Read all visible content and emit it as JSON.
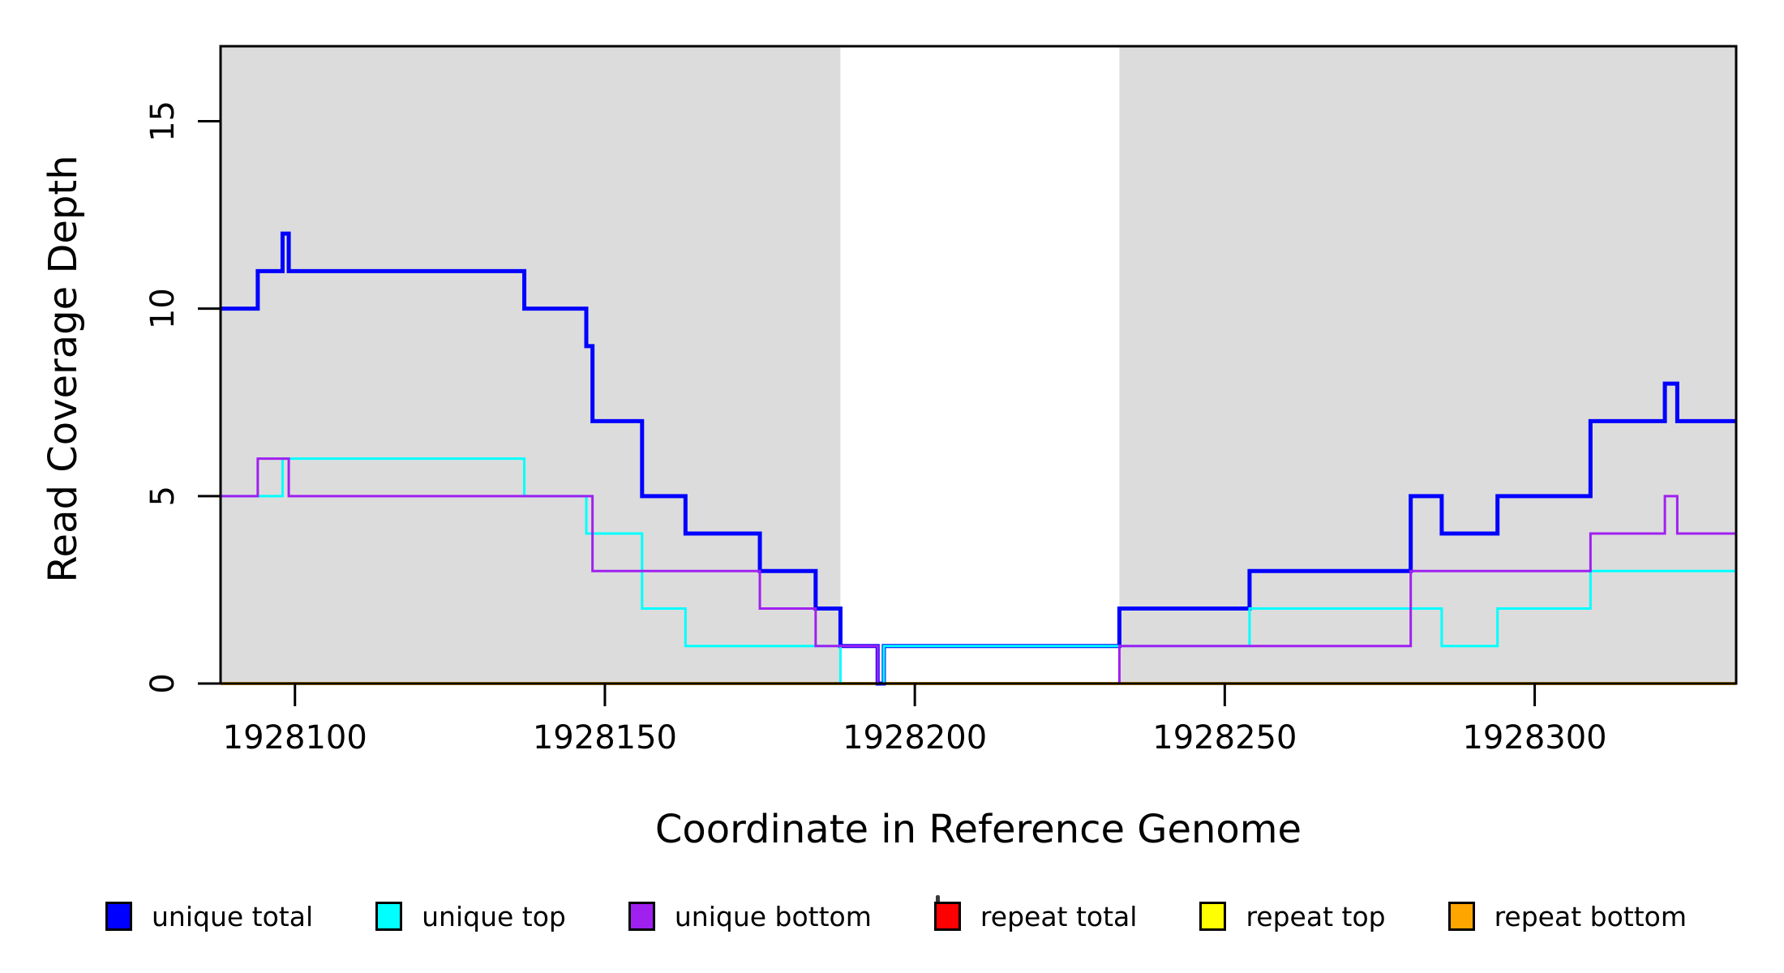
{
  "chart_data": {
    "type": "line",
    "subtype": "step-post",
    "title": "",
    "xlabel": "Coordinate in Reference Genome",
    "ylabel": "Read Coverage Depth",
    "xlim": [
      1928088,
      1928332.5
    ],
    "ylim": [
      0,
      17
    ],
    "x_ticks": [
      "1928100",
      "1928150",
      "1928200",
      "1928250",
      "1928300"
    ],
    "x_tick_values": [
      1928100,
      1928150,
      1928200,
      1928250,
      1928300
    ],
    "y_ticks": [
      "0",
      "5",
      "10",
      "15"
    ],
    "y_tick_values": [
      0,
      5,
      10,
      15
    ],
    "grid": false,
    "legend_position": "bottom",
    "colors": {
      "plot_background_covered": "#DCDCDC",
      "plot_background_gap": "#FFFFFF",
      "axis": "#000000",
      "unique_total": "#0000FF",
      "unique_top": "#00FFFF",
      "unique_bottom": "#A020F0",
      "repeat_total": "#FF0000",
      "repeat_top": "#FFFF00",
      "repeat_bottom": "#FFA500"
    },
    "background_regions": [
      {
        "name": "covered-left",
        "x0": 1928088,
        "x1": 1928188,
        "color": "#DCDCDC"
      },
      {
        "name": "uncovered-gap",
        "x0": 1928188,
        "x1": 1928233,
        "color": "#FFFFFF"
      },
      {
        "name": "covered-right",
        "x0": 1928233,
        "x1": 1928332.5,
        "color": "#DCDCDC"
      }
    ],
    "series": [
      {
        "name": "repeat total",
        "color": "#FF0000",
        "width": 3.5,
        "steps": [
          [
            1928088,
            0
          ]
        ]
      },
      {
        "name": "repeat top",
        "color": "#FFFF00",
        "width": 3.5,
        "steps": [
          [
            1928088,
            0
          ]
        ]
      },
      {
        "name": "repeat bottom",
        "color": "#FFA500",
        "width": 3.5,
        "steps": [
          [
            1928088,
            0
          ]
        ]
      },
      {
        "name": "unique total",
        "color": "#0000FF",
        "width": 5,
        "steps": [
          [
            1928088,
            10
          ],
          [
            1928094,
            11
          ],
          [
            1928098,
            12
          ],
          [
            1928099,
            11
          ],
          [
            1928137,
            10
          ],
          [
            1928147,
            9
          ],
          [
            1928148,
            7
          ],
          [
            1928156,
            5
          ],
          [
            1928163,
            4
          ],
          [
            1928175,
            3
          ],
          [
            1928184,
            2
          ],
          [
            1928188,
            1
          ],
          [
            1928194,
            0
          ],
          [
            1928195,
            1
          ],
          [
            1928233,
            2
          ],
          [
            1928254,
            3
          ],
          [
            1928280,
            5
          ],
          [
            1928285,
            4
          ],
          [
            1928294,
            5
          ],
          [
            1928309,
            7
          ],
          [
            1928321,
            8
          ],
          [
            1928323,
            7
          ]
        ]
      },
      {
        "name": "unique top",
        "color": "#00FFFF",
        "width": 3,
        "steps": [
          [
            1928088,
            5
          ],
          [
            1928098,
            6
          ],
          [
            1928137,
            5
          ],
          [
            1928147,
            4
          ],
          [
            1928156,
            2
          ],
          [
            1928163,
            1
          ],
          [
            1928188,
            0
          ],
          [
            1928195,
            1
          ],
          [
            1928254,
            2
          ],
          [
            1928285,
            1
          ],
          [
            1928294,
            2
          ],
          [
            1928309,
            3
          ]
        ]
      },
      {
        "name": "unique bottom",
        "color": "#A020F0",
        "width": 3,
        "steps": [
          [
            1928088,
            5
          ],
          [
            1928094,
            6
          ],
          [
            1928099,
            5
          ],
          [
            1928148,
            3
          ],
          [
            1928175,
            2
          ],
          [
            1928184,
            1
          ],
          [
            1928194,
            0
          ],
          [
            1928233,
            1
          ],
          [
            1928280,
            3
          ],
          [
            1928309,
            4
          ],
          [
            1928321,
            5
          ],
          [
            1928323,
            4
          ]
        ]
      }
    ],
    "legend": [
      {
        "label": "unique total",
        "color": "#0000FF"
      },
      {
        "label": "unique top",
        "color": "#00FFFF"
      },
      {
        "label": "unique bottom",
        "color": "#A020F0"
      },
      {
        "label": "repeat total",
        "color": "#FF0000"
      },
      {
        "label": "repeat top",
        "color": "#FFFF00"
      },
      {
        "label": "repeat bottom",
        "color": "#FFA500"
      }
    ]
  }
}
